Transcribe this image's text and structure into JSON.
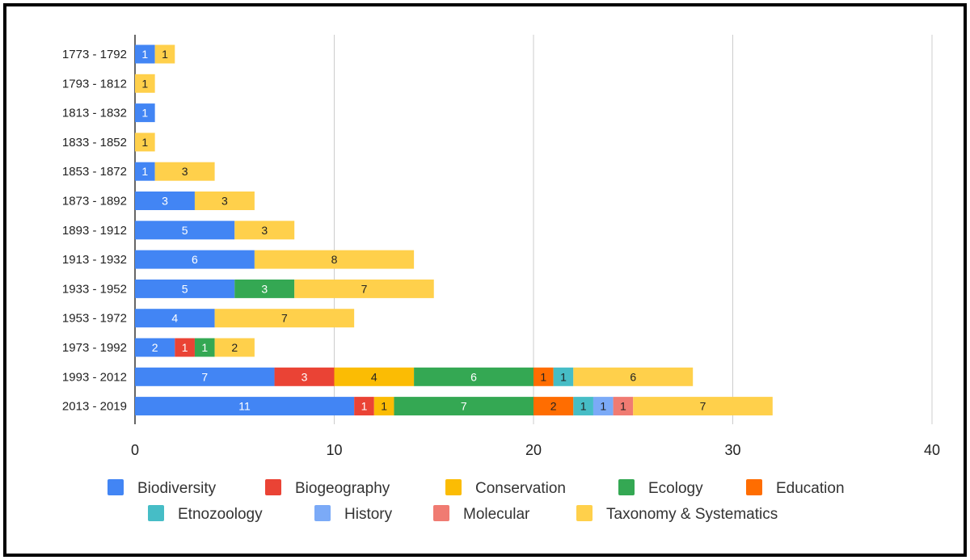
{
  "chart_data": {
    "type": "bar",
    "orientation": "horizontal",
    "stacked": true,
    "title": "",
    "xlabel": "",
    "ylabel": "",
    "xlim": [
      0,
      40
    ],
    "xticks": [
      0,
      10,
      20,
      30,
      40
    ],
    "grid": true,
    "legend_position": "bottom",
    "categories": [
      "1773 - 1792",
      "1793 - 1812",
      "1813 - 1832",
      "1833 - 1852",
      "1853 - 1872",
      "1873 - 1892",
      "1893 - 1912",
      "1913 - 1932",
      "1933 - 1952",
      "1953 - 1972",
      "1973 - 1992",
      "1993 - 2012",
      "2013 - 2019"
    ],
    "series": [
      {
        "name": "Biodiversity",
        "color": "#4285F4",
        "label_color": "#ffffff",
        "values": [
          1,
          0,
          1,
          0,
          1,
          3,
          5,
          6,
          5,
          4,
          2,
          7,
          11
        ]
      },
      {
        "name": "Biogeography",
        "color": "#EA4335",
        "label_color": "#ffffff",
        "values": [
          0,
          0,
          0,
          0,
          0,
          0,
          0,
          0,
          0,
          0,
          1,
          3,
          1
        ]
      },
      {
        "name": "Conservation",
        "color": "#FBBC04",
        "label_color": "#222222",
        "values": [
          0,
          0,
          0,
          0,
          0,
          0,
          0,
          0,
          0,
          0,
          0,
          4,
          1
        ]
      },
      {
        "name": "Ecology",
        "color": "#34A853",
        "label_color": "#ffffff",
        "values": [
          0,
          0,
          0,
          0,
          0,
          0,
          0,
          0,
          3,
          0,
          1,
          6,
          7
        ]
      },
      {
        "name": "Education",
        "color": "#FF6D01",
        "label_color": "#222222",
        "values": [
          0,
          0,
          0,
          0,
          0,
          0,
          0,
          0,
          0,
          0,
          0,
          1,
          2
        ]
      },
      {
        "name": "Etnozoology",
        "color": "#46BDC6",
        "label_color": "#222222",
        "values": [
          0,
          0,
          0,
          0,
          0,
          0,
          0,
          0,
          0,
          0,
          0,
          1,
          1
        ]
      },
      {
        "name": "History",
        "color": "#7BAAF7",
        "label_color": "#222222",
        "values": [
          0,
          0,
          0,
          0,
          0,
          0,
          0,
          0,
          0,
          0,
          0,
          0,
          1
        ]
      },
      {
        "name": "Molecular",
        "color": "#F07B72",
        "label_color": "#222222",
        "values": [
          0,
          0,
          0,
          0,
          0,
          0,
          0,
          0,
          0,
          0,
          0,
          0,
          1
        ]
      },
      {
        "name": "Taxonomy & Systematics",
        "color": "#FFD04B",
        "label_color": "#222222",
        "values": [
          1,
          1,
          0,
          1,
          3,
          3,
          3,
          8,
          7,
          7,
          2,
          6,
          7
        ]
      }
    ]
  }
}
